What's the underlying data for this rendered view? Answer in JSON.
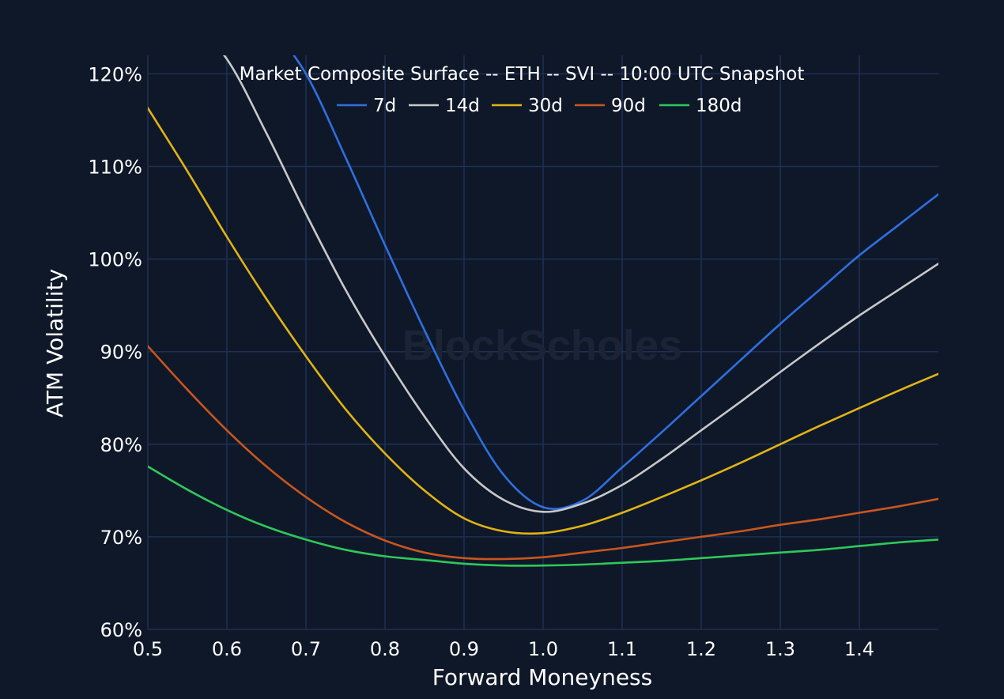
{
  "chart_data": {
    "type": "line",
    "title": "Market Composite Surface -- ETH -- SVI -- 10:00 UTC Snapshot",
    "xlabel": "Forward Moneyness",
    "ylabel": "ATM Volatility",
    "watermark": "BlockScholes",
    "xlim": [
      0.5,
      1.5
    ],
    "ylim": [
      60,
      122
    ],
    "xticks": [
      0.5,
      0.6,
      0.7,
      0.8,
      0.9,
      1.0,
      1.1,
      1.2,
      1.3,
      1.4
    ],
    "xtick_labels": [
      "0.5",
      "0.6",
      "0.7",
      "0.8",
      "0.9",
      "1.0",
      "1.1",
      "1.2",
      "1.3",
      "1.4"
    ],
    "yticks": [
      60,
      70,
      80,
      90,
      100,
      110,
      120
    ],
    "ytick_labels": [
      "60%",
      "70%",
      "80%",
      "90%",
      "100%",
      "110%",
      "120%"
    ],
    "grid": true,
    "legend_position": "top-center",
    "colors": {
      "background": "#0f1829",
      "grid": "#1f3054",
      "text": "#ffffff"
    },
    "series": [
      {
        "name": "7d",
        "color": "#2f6fe0",
        "x": [
          0.65,
          0.7,
          0.75,
          0.8,
          0.85,
          0.9,
          0.95,
          1.0,
          1.05,
          1.1,
          1.15,
          1.2,
          1.25,
          1.3,
          1.35,
          1.4,
          1.45,
          1.5
        ],
        "y": [
          125.8,
          120.0,
          111.0,
          101.5,
          92.3,
          83.7,
          76.7,
          73.2,
          73.9,
          77.5,
          81.3,
          85.2,
          89.1,
          93.0,
          96.7,
          100.4,
          103.7,
          107.0
        ]
      },
      {
        "name": "14d",
        "color": "#c8c8c8",
        "x": [
          0.55,
          0.6,
          0.65,
          0.7,
          0.75,
          0.8,
          0.85,
          0.9,
          0.95,
          1.0,
          1.05,
          1.1,
          1.15,
          1.2,
          1.25,
          1.3,
          1.35,
          1.4,
          1.45,
          1.5
        ],
        "y": [
          126.0,
          121.6,
          113.6,
          104.9,
          96.7,
          89.5,
          83.0,
          77.4,
          74.0,
          72.7,
          73.6,
          75.6,
          78.4,
          81.5,
          84.6,
          87.8,
          90.9,
          93.9,
          96.7,
          99.5
        ]
      },
      {
        "name": "30d",
        "color": "#e1b414",
        "x": [
          0.5,
          0.55,
          0.6,
          0.65,
          0.7,
          0.75,
          0.8,
          0.85,
          0.9,
          0.95,
          1.0,
          1.05,
          1.1,
          1.15,
          1.2,
          1.25,
          1.3,
          1.35,
          1.4,
          1.45,
          1.5
        ],
        "y": [
          116.3,
          109.5,
          102.4,
          95.7,
          89.5,
          83.8,
          79.0,
          75.0,
          72.0,
          70.6,
          70.4,
          71.2,
          72.6,
          74.3,
          76.1,
          78.0,
          80.0,
          82.0,
          83.9,
          85.8,
          87.6
        ]
      },
      {
        "name": "90d",
        "color": "#c9561e",
        "x": [
          0.5,
          0.55,
          0.6,
          0.65,
          0.7,
          0.75,
          0.8,
          0.85,
          0.9,
          0.95,
          1.0,
          1.05,
          1.1,
          1.15,
          1.2,
          1.25,
          1.3,
          1.35,
          1.4,
          1.45,
          1.5
        ],
        "y": [
          90.6,
          85.9,
          81.5,
          77.6,
          74.3,
          71.6,
          69.6,
          68.3,
          67.7,
          67.6,
          67.8,
          68.3,
          68.8,
          69.4,
          70.0,
          70.6,
          71.3,
          71.9,
          72.6,
          73.3,
          74.1
        ]
      },
      {
        "name": "180d",
        "color": "#2fc85a",
        "x": [
          0.5,
          0.55,
          0.6,
          0.65,
          0.7,
          0.75,
          0.8,
          0.85,
          0.9,
          0.95,
          1.0,
          1.05,
          1.1,
          1.15,
          1.2,
          1.25,
          1.3,
          1.35,
          1.4,
          1.45,
          1.5
        ],
        "y": [
          77.6,
          75.1,
          72.9,
          71.1,
          69.7,
          68.6,
          67.9,
          67.5,
          67.1,
          66.9,
          66.9,
          67.0,
          67.2,
          67.4,
          67.7,
          68.0,
          68.3,
          68.6,
          69.0,
          69.4,
          69.7
        ]
      }
    ]
  }
}
